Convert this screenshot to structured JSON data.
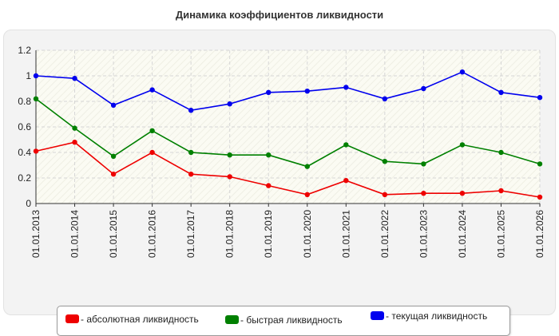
{
  "chart_data": {
    "type": "line",
    "title": "Динамика коэффициентов ликвидности",
    "xlabel": "",
    "ylabel": "",
    "categories": [
      "01.01.2013",
      "01.01.2014",
      "01.01.2015",
      "01.01.2016",
      "01.01.2017",
      "01.01.2018",
      "01.01.2019",
      "01.01.2020",
      "01.01.2021",
      "01.01.2022",
      "01.01.2023",
      "01.01.2024",
      "01.01.2025",
      "01.01.2026"
    ],
    "ylim": [
      0,
      1.2
    ],
    "yticks": [
      "0",
      "0.2",
      "0.4",
      "0.6",
      "0.8",
      "1",
      "1.2"
    ],
    "grid": true,
    "legend_position": "bottom",
    "series": [
      {
        "name": "- абсолютная ликвидность",
        "color": "#ee0000",
        "values": [
          0.41,
          0.48,
          0.23,
          0.4,
          0.23,
          0.21,
          0.14,
          0.07,
          0.18,
          0.07,
          0.08,
          0.08,
          0.1,
          0.05
        ]
      },
      {
        "name": "- быстрая ликвидность",
        "color": "#008000",
        "values": [
          0.82,
          0.59,
          0.37,
          0.57,
          0.4,
          0.38,
          0.38,
          0.29,
          0.46,
          0.33,
          0.31,
          0.46,
          0.4,
          0.31
        ]
      },
      {
        "name": "- текущая ликвидность",
        "color": "#0000ee",
        "values": [
          1.0,
          0.98,
          0.77,
          0.89,
          0.73,
          0.78,
          0.87,
          0.88,
          0.91,
          0.82,
          0.9,
          1.03,
          0.87,
          0.83
        ]
      }
    ]
  }
}
